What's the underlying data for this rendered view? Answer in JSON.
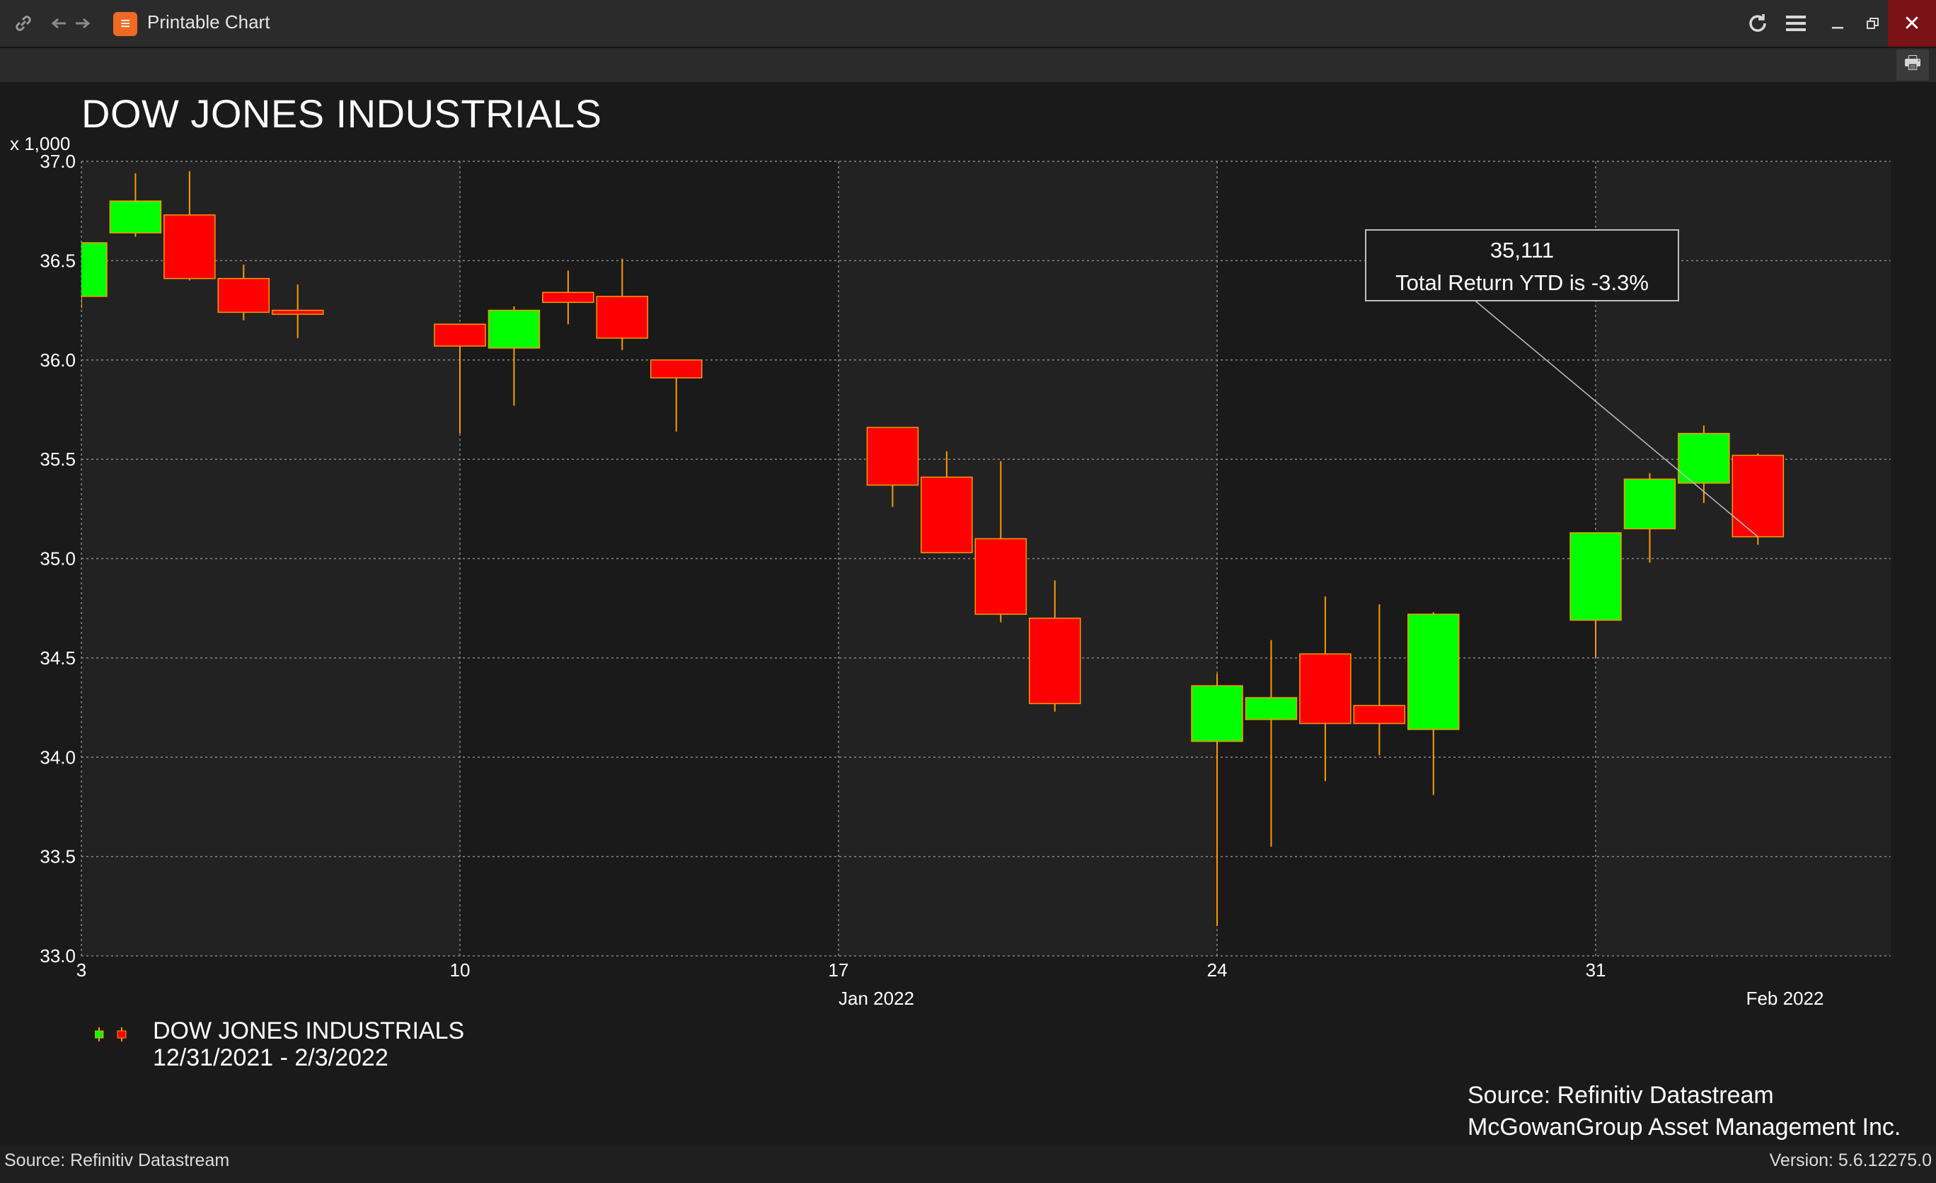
{
  "window": {
    "title": "Printable Chart",
    "app_icon": "refinitiv-logo-icon",
    "icons": [
      "link-icon",
      "back-arrow-icon",
      "forward-arrow-icon",
      "refresh-icon",
      "menu-icon",
      "minimize-icon",
      "restore-icon",
      "close-icon",
      "print-icon"
    ]
  },
  "chart_header": {
    "title": "DOW JONES INDUSTRIALS",
    "unit_label": "x 1,000"
  },
  "legend": {
    "series_name": "DOW JONES INDUSTRIALS",
    "date_range": "12/31/2021 - 2/3/2022"
  },
  "source_note": {
    "line1": "Source: Refinitiv Datastream",
    "line2": "McGowanGroup Asset Management Inc."
  },
  "status_bar": {
    "left": "Source: Refinitiv Datastream",
    "right": "Version: 5.6.12275.0"
  },
  "colors": {
    "up": "#00ff00",
    "down": "#ff0000",
    "wick": "#ff9900",
    "background": "#1a1a1a",
    "plot_background_alt": "#222222",
    "grid": "#888888"
  },
  "chart_data": {
    "type": "candlestick",
    "title": "DOW JONES INDUSTRIALS",
    "ylabel": "x 1,000",
    "ylim": [
      33.0,
      37.0
    ],
    "yticks": [
      "37.0",
      "36.5",
      "36.0",
      "35.5",
      "35.0",
      "34.5",
      "34.0",
      "33.5",
      "33.0"
    ],
    "xticks": [
      {
        "day": 3,
        "label": "3"
      },
      {
        "day": 10,
        "label": "10"
      },
      {
        "day": 17,
        "label": "17"
      },
      {
        "day": 24,
        "label": "24"
      },
      {
        "day": 31,
        "label": "31"
      }
    ],
    "month_labels": [
      {
        "day": 17.7,
        "label": "Jan 2022"
      },
      {
        "day": 34.5,
        "label": "Feb 2022"
      }
    ],
    "grid": true,
    "legend_position": "bottom-left",
    "candles": [
      {
        "day": 3,
        "open": 36.32,
        "high": 36.58,
        "low": 36.26,
        "close": 36.59
      },
      {
        "day": 4,
        "open": 36.64,
        "high": 36.94,
        "low": 36.62,
        "close": 36.8
      },
      {
        "day": 5,
        "open": 36.73,
        "high": 36.95,
        "low": 36.4,
        "close": 36.41
      },
      {
        "day": 6,
        "open": 36.41,
        "high": 36.48,
        "low": 36.2,
        "close": 36.24
      },
      {
        "day": 7,
        "open": 36.25,
        "high": 36.38,
        "low": 36.11,
        "close": 36.23
      },
      {
        "day": 10,
        "open": 36.18,
        "high": 36.18,
        "low": 35.63,
        "close": 36.07
      },
      {
        "day": 11,
        "open": 36.06,
        "high": 36.27,
        "low": 35.77,
        "close": 36.25
      },
      {
        "day": 12,
        "open": 36.34,
        "high": 36.45,
        "low": 36.18,
        "close": 36.29
      },
      {
        "day": 13,
        "open": 36.32,
        "high": 36.51,
        "low": 36.05,
        "close": 36.11
      },
      {
        "day": 14,
        "open": 36.0,
        "high": 36.0,
        "low": 35.64,
        "close": 35.91
      },
      {
        "day": 18,
        "open": 35.66,
        "high": 35.66,
        "low": 35.26,
        "close": 35.37
      },
      {
        "day": 19,
        "open": 35.41,
        "high": 35.54,
        "low": 35.03,
        "close": 35.03
      },
      {
        "day": 20,
        "open": 35.1,
        "high": 35.49,
        "low": 34.68,
        "close": 34.72
      },
      {
        "day": 21,
        "open": 34.7,
        "high": 34.89,
        "low": 34.23,
        "close": 34.27
      },
      {
        "day": 24,
        "open": 34.08,
        "high": 34.42,
        "low": 33.15,
        "close": 34.36
      },
      {
        "day": 25,
        "open": 34.19,
        "high": 34.59,
        "low": 33.55,
        "close": 34.3
      },
      {
        "day": 26,
        "open": 34.52,
        "high": 34.81,
        "low": 33.88,
        "close": 34.17
      },
      {
        "day": 27,
        "open": 34.26,
        "high": 34.77,
        "low": 34.01,
        "close": 34.17
      },
      {
        "day": 28,
        "open": 34.14,
        "high": 34.73,
        "low": 33.81,
        "close": 34.72
      },
      {
        "day": 31,
        "open": 34.69,
        "high": 35.13,
        "low": 34.5,
        "close": 35.13
      },
      {
        "day": 32,
        "open": 35.15,
        "high": 35.43,
        "low": 34.98,
        "close": 35.4
      },
      {
        "day": 33,
        "open": 35.38,
        "high": 35.67,
        "low": 35.28,
        "close": 35.63
      },
      {
        "day": 34,
        "open": 35.52,
        "high": 35.53,
        "low": 35.07,
        "close": 35.11
      }
    ],
    "annotation": {
      "line1": "35,111",
      "line2": "Total Return YTD is -3.3%",
      "points_to_day": 34,
      "points_to_value": 35.11
    }
  }
}
